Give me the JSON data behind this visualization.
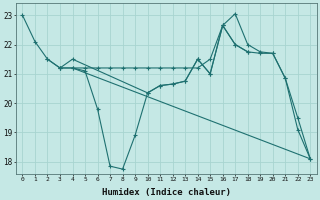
{
  "xlabel": "Humidex (Indice chaleur)",
  "background_color": "#c5e8e5",
  "grid_color": "#a8d4d0",
  "line_color": "#1e7070",
  "xlim": [
    -0.5,
    23.5
  ],
  "ylim": [
    17.6,
    23.4
  ],
  "yticks": [
    18,
    19,
    20,
    21,
    22,
    23
  ],
  "xticks": [
    0,
    1,
    2,
    3,
    4,
    5,
    6,
    7,
    8,
    9,
    10,
    11,
    12,
    13,
    14,
    15,
    16,
    17,
    18,
    19,
    20,
    21,
    22,
    23
  ],
  "s1x": [
    0,
    1,
    2,
    3,
    4,
    5,
    6,
    7,
    8,
    9,
    10,
    11,
    12,
    13,
    14,
    15,
    16,
    17,
    18,
    19,
    20,
    21,
    22,
    23
  ],
  "s1y": [
    23.0,
    22.1,
    21.5,
    21.2,
    21.2,
    21.1,
    19.8,
    17.85,
    17.75,
    18.9,
    20.35,
    20.6,
    20.65,
    20.75,
    21.5,
    21.0,
    22.65,
    23.05,
    22.0,
    21.75,
    21.7,
    20.85,
    19.1,
    18.1
  ],
  "s2x": [
    2,
    3,
    4,
    5,
    6,
    7,
    8,
    9,
    10,
    11,
    12,
    13,
    14,
    15,
    16,
    17,
    18
  ],
  "s2y": [
    21.5,
    21.2,
    21.2,
    21.2,
    21.2,
    21.2,
    21.2,
    21.2,
    21.2,
    21.2,
    21.2,
    21.2,
    21.2,
    21.5,
    22.65,
    22.0,
    21.75
  ],
  "s3x": [
    3,
    4,
    10,
    11,
    12,
    13,
    14,
    15,
    16,
    17,
    18,
    19,
    20,
    21,
    22,
    23
  ],
  "s3y": [
    21.2,
    21.5,
    20.35,
    20.6,
    20.65,
    20.75,
    21.5,
    21.0,
    22.65,
    22.0,
    21.75,
    21.7,
    21.7,
    20.85,
    19.5,
    18.1
  ],
  "s4x": [
    4,
    23
  ],
  "s4y": [
    21.2,
    18.1
  ]
}
